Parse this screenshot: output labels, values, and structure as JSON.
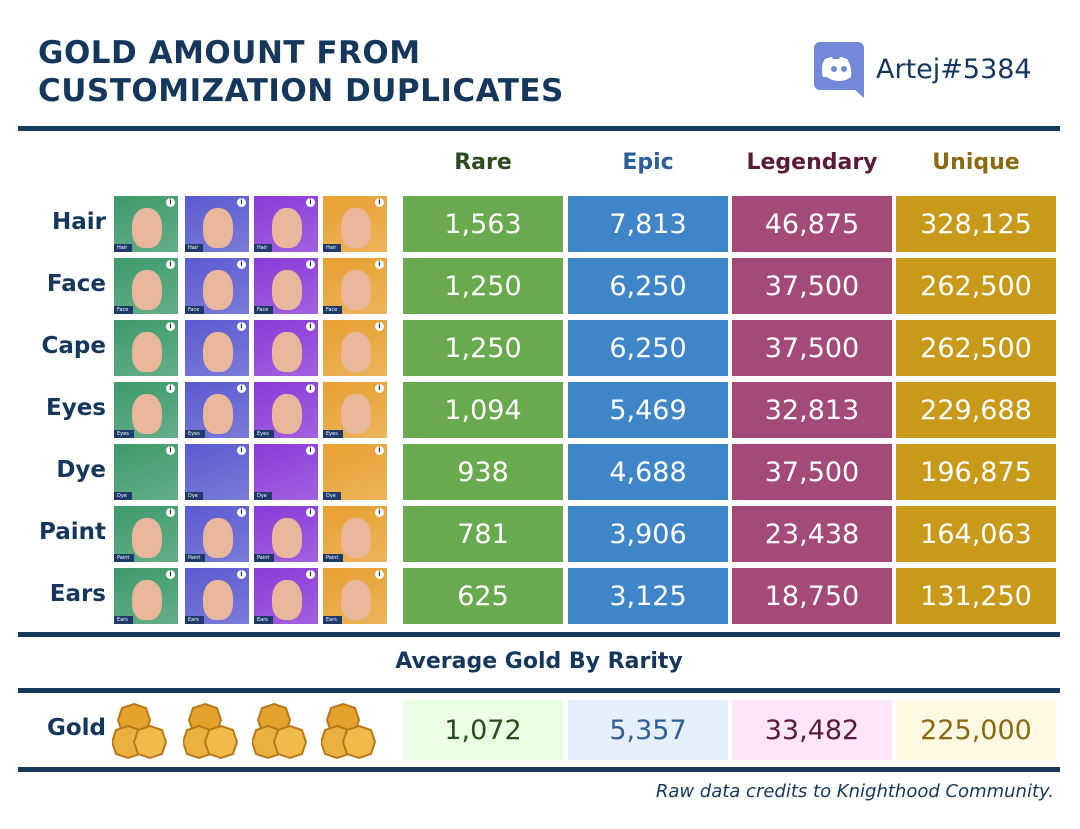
{
  "title_line1": "GOLD AMOUNT FROM",
  "title_line2": "CUSTOMIZATION DUPLICATES",
  "discord_handle": "Artej#5384",
  "columns": [
    {
      "label": "Rare",
      "color": "#6aaa4f",
      "head": "#2b4a1e",
      "light": "#eaffe3"
    },
    {
      "label": "Epic",
      "color": "#3f86c9",
      "head": "#2f5f9a",
      "light": "#e6effd"
    },
    {
      "label": "Legendary",
      "color": "#a44a78",
      "head": "#5a1a3a",
      "light": "#fde6f9"
    },
    {
      "label": "Unique",
      "color": "#c99a1a",
      "head": "#8a6a10",
      "light": "#fff8e3"
    }
  ],
  "thumb_colors": [
    "#3d9a6a",
    "#5a5ad0",
    "#8a3ad8",
    "#e8a030"
  ],
  "rows": [
    {
      "label": "Hair",
      "tag": "Hair",
      "values": [
        "1,563",
        "7,813",
        "46,875",
        "328,125"
      ]
    },
    {
      "label": "Face",
      "tag": "Face",
      "values": [
        "1,250",
        "6,250",
        "37,500",
        "262,500"
      ]
    },
    {
      "label": "Cape",
      "tag": "",
      "values": [
        "1,250",
        "6,250",
        "37,500",
        "262,500"
      ]
    },
    {
      "label": "Eyes",
      "tag": "Eyes",
      "values": [
        "1,094",
        "5,469",
        "32,813",
        "229,688"
      ]
    },
    {
      "label": "Dye",
      "tag": "Dye",
      "values": [
        "938",
        "4,688",
        "37,500",
        "196,875"
      ]
    },
    {
      "label": "Paint",
      "tag": "Paint",
      "values": [
        "781",
        "3,906",
        "23,438",
        "164,063"
      ]
    },
    {
      "label": "Ears",
      "tag": "Ears",
      "values": [
        "625",
        "3,125",
        "18,750",
        "131,250"
      ]
    }
  ],
  "average_title": "Average Gold By Rarity",
  "gold_label": "Gold",
  "averages": [
    "1,072",
    "5,357",
    "33,482",
    "225,000"
  ],
  "credit": "Raw data credits to Knighthood Community."
}
